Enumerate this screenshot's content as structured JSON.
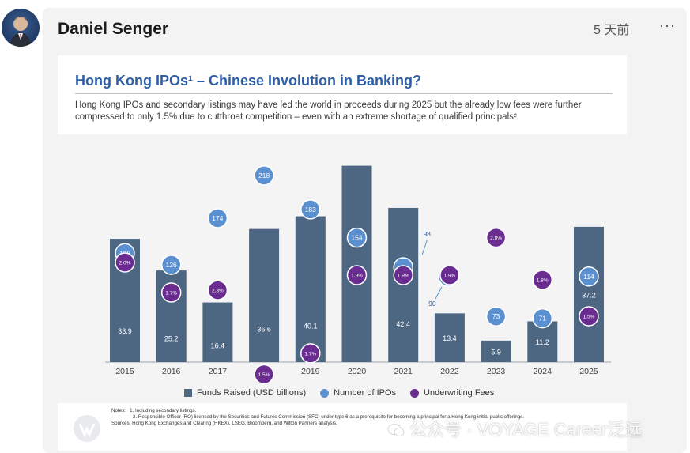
{
  "post": {
    "author": "Daniel Senger",
    "time": "5 天前",
    "more_label": "···"
  },
  "slide": {
    "title": "Hong Kong IPOs¹ – Chinese Involution in Banking?",
    "subtitle": "Hong Kong IPOs and secondary listings may have led the world in proceeds during 2025 but the already low fees were further compressed to only 1.5% due to cutthroat competition – even with an extreme shortage of qualified principals²",
    "notes": {
      "label": "Notes:",
      "n1": "1.  Including secondary listings.",
      "n2": "2.  Responsible Officer (RO) licensed by the Securities and Futures Commission (SFC) under type 6 as a prerequisite for becoming a principal for a Hong Kong initial public offerings.",
      "sources": "Sources: Hong Kong Exchanges and Clearing (HKEX), LSEG, Bloomberg, and Wilton Partners analysis."
    }
  },
  "watermark": "公众号 · VOYAGE Career泛远",
  "colors": {
    "bar": "#4d6783",
    "ipo_fill": "#5a8fd0",
    "fee_fill": "#6a2c91",
    "title": "#2e5ea6"
  },
  "chart_data": {
    "type": "bar",
    "title": "Hong Kong IPOs¹ – Chinese Involution in Banking?",
    "categories": [
      "2015",
      "2016",
      "2017",
      "2018",
      "2019",
      "2020",
      "2021",
      "2022",
      "2023",
      "2024",
      "2025"
    ],
    "series": [
      {
        "name": "Funds Raised (USD billions)",
        "type": "bar",
        "values": [
          33.9,
          25.2,
          16.4,
          36.6,
          40.1,
          54,
          42.4,
          13.4,
          5.9,
          11.2,
          37.2
        ]
      },
      {
        "name": "Number of IPOs",
        "type": "marker",
        "values": [
          138,
          126,
          174,
          218,
          183,
          154,
          98,
          90,
          73,
          71,
          114
        ]
      },
      {
        "name": "Underwriting Fees",
        "type": "marker",
        "values": [
          "2.0%",
          "1.7%",
          "2.3%",
          "1.5%",
          "1.7%",
          "1.9%",
          "1.9%",
          "1.9%",
          "2.8%",
          "1.8%",
          "1.5%"
        ]
      }
    ],
    "bar_labels": [
      "33.9",
      "25.2",
      "16.4",
      "36.6",
      "40.1",
      "",
      "42.4",
      "13.4",
      "5.9",
      "11.2",
      "37.2"
    ],
    "ipo_labels": [
      "138",
      "126",
      "174",
      "218",
      "183",
      "154",
      "98",
      "90",
      "73",
      "71",
      "114"
    ],
    "fee_labels": [
      "2.0%",
      "1.7%",
      "2.3%",
      "1.5%",
      "1.7%",
      "1.9%",
      "1.9%",
      "1.9%",
      "2.8%",
      "1.8%",
      "1.5%"
    ],
    "legend": [
      "Funds Raised (USD billions)",
      "Number of IPOs",
      "Underwriting Fees"
    ],
    "legend_position": "bottom",
    "grid": false
  }
}
